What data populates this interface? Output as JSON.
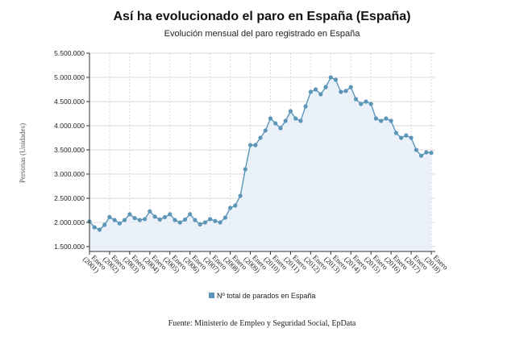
{
  "title": "Así ha evolucionado el paro en España (España)",
  "subtitle": "Evolución mensual del paro registrado en España",
  "source": "Fuente: Ministerio de Empleo y Seguridad Social, EpData",
  "colors": {
    "series": "#5b95b8",
    "fill": "#e6eef7",
    "grid": "#d8d8d8",
    "axis": "#333333"
  },
  "chart_data": {
    "type": "area",
    "title": "Así ha evolucionado el paro en España (España)",
    "subtitle": "Evolución mensual del paro registrado en España",
    "xlabel": "",
    "ylabel": "Personas (Unidades)",
    "ylim": [
      1400000,
      5500000
    ],
    "yticks": [
      1500000,
      2000000,
      2500000,
      3000000,
      3500000,
      4000000,
      4500000,
      5000000,
      5500000
    ],
    "ytick_labels": [
      "1.500.000",
      "2.000.000",
      "2.500.000",
      "3.000.000",
      "3.500.000",
      "4.000.000",
      "4.500.000",
      "5.000.000",
      "5.500.000"
    ],
    "xlim": [
      2001.0,
      2018.2
    ],
    "xticks": [
      2001,
      2002,
      2003,
      2004,
      2005,
      2006,
      2007,
      2008,
      2009,
      2010,
      2011,
      2012,
      2013,
      2014,
      2015,
      2016,
      2017,
      2018
    ],
    "xtick_labels": [
      "Enero (2001)",
      "Enero (2002)",
      "Enero (2003)",
      "Enero (2004)",
      "Enero (2005)",
      "Enero (2006)",
      "Enero (2007)",
      "Enero (2008)",
      "Enero (2009)",
      "Enero (2010)",
      "Enero (2011)",
      "Enero (2012)",
      "Enero (2013)",
      "Enero (2014)",
      "Enero (2015)",
      "Enero (2016)",
      "Enero (2017)",
      "Enero (2018)"
    ],
    "grid": true,
    "legend_position": "bottom",
    "series": [
      {
        "name": "Nº total de parados en España",
        "x": [
          2001.0,
          2001.25,
          2001.5,
          2001.75,
          2002.0,
          2002.25,
          2002.5,
          2002.75,
          2003.0,
          2003.25,
          2003.5,
          2003.75,
          2004.0,
          2004.25,
          2004.5,
          2004.75,
          2005.0,
          2005.25,
          2005.5,
          2005.75,
          2006.0,
          2006.25,
          2006.5,
          2006.75,
          2007.0,
          2007.25,
          2007.5,
          2007.75,
          2008.0,
          2008.25,
          2008.5,
          2008.75,
          2009.0,
          2009.25,
          2009.5,
          2009.75,
          2010.0,
          2010.25,
          2010.5,
          2010.75,
          2011.0,
          2011.25,
          2011.5,
          2011.75,
          2012.0,
          2012.25,
          2012.5,
          2012.75,
          2013.0,
          2013.25,
          2013.5,
          2013.75,
          2014.0,
          2014.25,
          2014.5,
          2014.75,
          2015.0,
          2015.25,
          2015.5,
          2015.75,
          2016.0,
          2016.25,
          2016.5,
          2016.75,
          2017.0,
          2017.25,
          2017.5,
          2017.75,
          2018.0
        ],
        "y": [
          2020000,
          1900000,
          1850000,
          1950000,
          2110000,
          2050000,
          1980000,
          2050000,
          2170000,
          2090000,
          2050000,
          2070000,
          2230000,
          2120000,
          2060000,
          2110000,
          2170000,
          2050000,
          2000000,
          2060000,
          2170000,
          2050000,
          1960000,
          2000000,
          2070000,
          2030000,
          2000000,
          2100000,
          2300000,
          2350000,
          2550000,
          3100000,
          3600000,
          3600000,
          3750000,
          3900000,
          4150000,
          4050000,
          3950000,
          4100000,
          4300000,
          4150000,
          4100000,
          4400000,
          4700000,
          4750000,
          4650000,
          4800000,
          5000000,
          4950000,
          4700000,
          4720000,
          4800000,
          4550000,
          4450000,
          4500000,
          4450000,
          4150000,
          4100000,
          4150000,
          4100000,
          3850000,
          3750000,
          3800000,
          3750000,
          3500000,
          3380000,
          3450000,
          3440000
        ]
      }
    ]
  }
}
